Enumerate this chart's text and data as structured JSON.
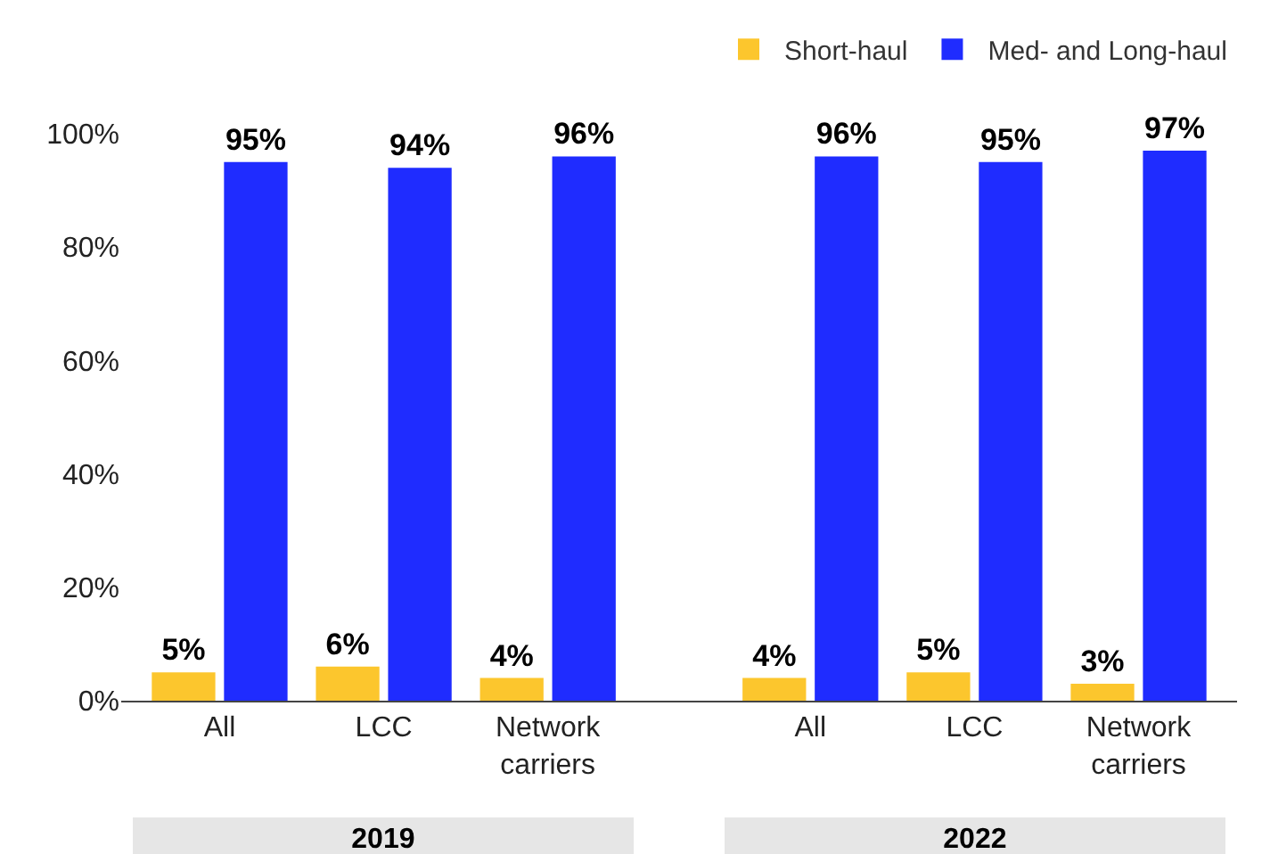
{
  "chart_data": {
    "type": "bar",
    "categories": [
      "All",
      "LCC",
      "Network carriers",
      "All",
      "LCC",
      "Network carriers"
    ],
    "series": [
      {
        "name": "Short-haul",
        "color": "#fcc62d",
        "values": [
          5,
          6,
          4,
          4,
          5,
          3
        ],
        "value_labels": [
          "5%",
          "6%",
          "4%",
          "4%",
          "5%",
          "3%"
        ]
      },
      {
        "name": "Med- and Long-haul",
        "color": "#1f2cff",
        "values": [
          95,
          94,
          96,
          96,
          95,
          97
        ],
        "value_labels": [
          "95%",
          "94%",
          "96%",
          "96%",
          "95%",
          "97%"
        ]
      }
    ],
    "ylim": [
      0,
      100
    ],
    "yticks": [
      {
        "value": 0,
        "label": "0%"
      },
      {
        "value": 20,
        "label": "20%"
      },
      {
        "value": 40,
        "label": "40%"
      },
      {
        "value": 60,
        "label": "60%"
      },
      {
        "value": 80,
        "label": "80%"
      },
      {
        "value": 100,
        "label": "100%"
      }
    ],
    "grid": false,
    "legend": "top right",
    "annotations": [
      "2019",
      "2022"
    ]
  }
}
